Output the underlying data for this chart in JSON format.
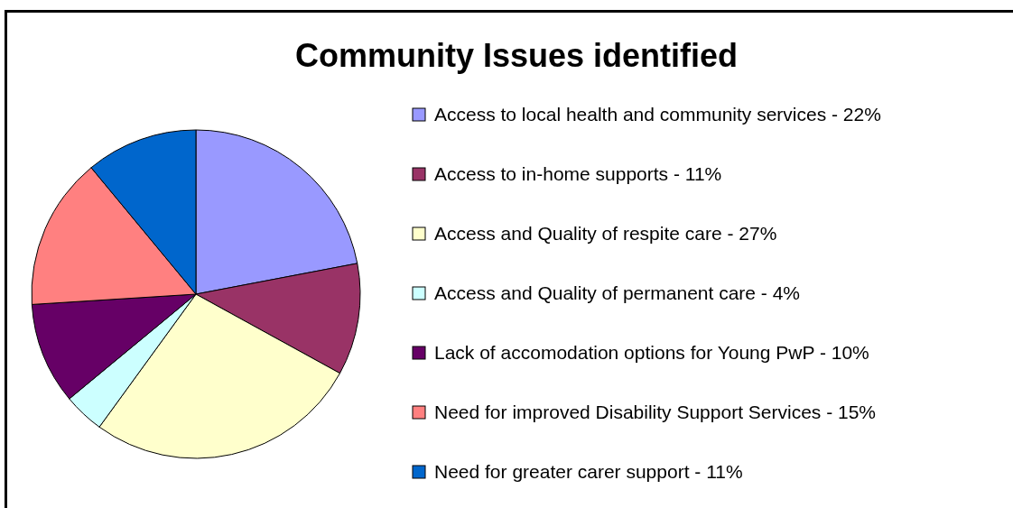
{
  "chart_data": {
    "type": "pie",
    "title": "Community Issues identified",
    "categories": [
      "Access to local health and community services - 22%",
      "Access to in-home supports - 11%",
      "Access and Quality of respite care - 27%",
      "Access and Quality of permanent care - 4%",
      "Lack of accomodation options for Young PwP - 10%",
      "Need for improved Disability Support Services - 15%",
      "Need for greater carer support - 11%"
    ],
    "values": [
      22,
      11,
      27,
      4,
      10,
      15,
      11
    ],
    "colors": [
      "#9999ff",
      "#993366",
      "#ffffcc",
      "#ccffff",
      "#660066",
      "#ff8080",
      "#0066cc"
    ],
    "legend": "right"
  }
}
